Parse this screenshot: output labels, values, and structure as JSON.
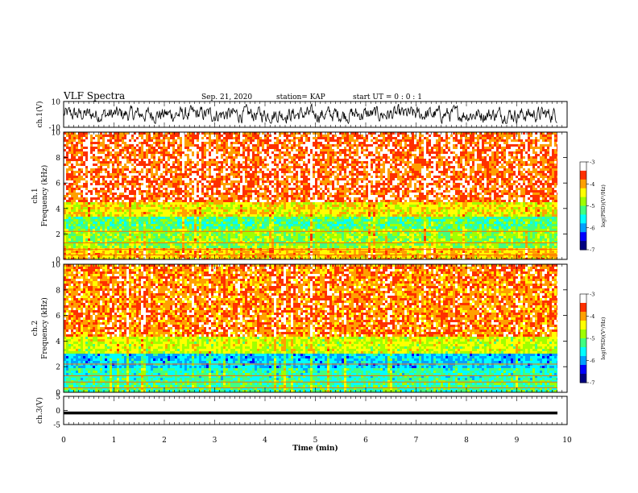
{
  "header": {
    "title": "VLF Spectra",
    "date": "Sep. 21, 2020",
    "station": "station= KAP",
    "start": "start  UT =   0 : 0  : 1"
  },
  "colors": {
    "colormap": [
      "#000080",
      "#0000ff",
      "#00a0ff",
      "#00ffff",
      "#40ff80",
      "#a0ff00",
      "#ffff00",
      "#ffa000",
      "#ff3000",
      "#ffffff"
    ]
  },
  "chart_data": [
    {
      "type": "line",
      "panel": "ch1-waveform",
      "ylabel": "ch.1(V)",
      "yticks": [
        "10",
        "-10"
      ],
      "ylim": [
        -10,
        10
      ],
      "xlim": [
        0,
        10
      ],
      "series": [
        {
          "values": "noise-like voltage trace, approx -6 to 7 V"
        }
      ]
    },
    {
      "type": "heatmap",
      "panel": "ch1-spectrogram",
      "ylabel": "ch.1\nFrequency (kHz)",
      "yticks": [
        "0",
        "2",
        "4",
        "6",
        "8",
        "10"
      ],
      "ylim": [
        0,
        10
      ],
      "xlim": [
        0,
        10
      ],
      "colorbar": {
        "label": "log(PSD)(V²/Hz)",
        "ticks": [
          "-3",
          "-4",
          "-5",
          "-6",
          "-7"
        ],
        "range": [
          -7,
          -3
        ]
      },
      "bands_khz": [
        {
          "from": 0,
          "to": 1,
          "level": -4.2
        },
        {
          "from": 1,
          "to": 2.5,
          "level": -4.9
        },
        {
          "from": 2.5,
          "to": 3.5,
          "level": -5.2
        },
        {
          "from": 3.5,
          "to": 4.5,
          "level": -4.4
        },
        {
          "from": 4.5,
          "to": 10,
          "level": -3.7
        }
      ]
    },
    {
      "type": "heatmap",
      "panel": "ch2-spectrogram",
      "ylabel": "ch.2\nFrequency (kHz)",
      "yticks": [
        "0",
        "2",
        "4",
        "6",
        "8",
        "10"
      ],
      "ylim": [
        0,
        10
      ],
      "xlim": [
        0,
        10
      ],
      "colorbar": {
        "label": "log(PSD)(V²/Hz)",
        "ticks": [
          "-3",
          "-4",
          "-5",
          "-6",
          "-7"
        ],
        "range": [
          -7,
          -3
        ]
      },
      "bands_khz": [
        {
          "from": 0,
          "to": 1,
          "level": -5.3
        },
        {
          "from": 1,
          "to": 2,
          "level": -5.4
        },
        {
          "from": 2,
          "to": 3.2,
          "level": -5.8
        },
        {
          "from": 3.2,
          "to": 4.5,
          "level": -4.6
        },
        {
          "from": 4.5,
          "to": 10,
          "level": -3.9
        }
      ]
    },
    {
      "type": "line",
      "panel": "ch3-waveform",
      "ylabel": "ch.3(V)",
      "yticks": [
        "5",
        "0",
        "-5"
      ],
      "ylim": [
        -5,
        5
      ],
      "xlim": [
        0,
        10
      ],
      "series": [
        {
          "values": "near-constant band at approx -1 V"
        }
      ]
    }
  ],
  "xaxis": {
    "label": "Time (min)",
    "ticks": [
      "0",
      "1",
      "2",
      "3",
      "4",
      "5",
      "6",
      "7",
      "8",
      "9",
      "10"
    ]
  }
}
